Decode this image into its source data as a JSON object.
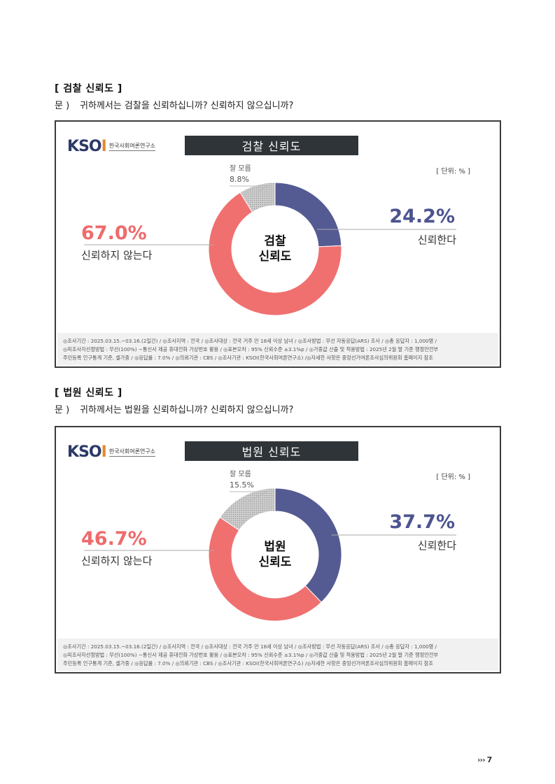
{
  "sections": [
    {
      "heading": "[ 검찰 신뢰도 ]",
      "question_label": "문 )",
      "question": "귀하께서는 검찰을 신뢰하십니까? 신뢰하지 않으십니까?",
      "chart_title": "검찰 신뢰도",
      "center_label_line1": "검찰",
      "center_label_line2": "신뢰도"
    },
    {
      "heading": "[ 법원 신뢰도 ]",
      "question_label": "문 )",
      "question": "귀하께서는 법원을 신뢰하십니까? 신뢰하지 않으십니까?",
      "chart_title": "법원 신뢰도",
      "center_label_line1": "법원",
      "center_label_line2": "신뢰도"
    }
  ],
  "logo": {
    "mark_k": "K",
    "mark_soi": "SO",
    "mark_i": "I",
    "subtitle": "한국사회여론연구소"
  },
  "unit_label": "[ 단위: % ]",
  "footer": {
    "line1": "◎조사기간 : 2025.03.15.~03.16.(2일간)  / ◎조사지역 : 전국 / ◎조사대상 : 전국 거주 만 18세 이상 남녀 / ◎조사방법 : 무선 자동응답(ARS) 조사 / ◎총 응답자 : 1,000명 /",
    "line2": "◎피조사자선정방법 : 무선(100%) ~통신사 제공 휴대전화 가상번호 활용 / ◎표본오차 : 95% 신뢰수준 ±3.1%p / ◎가중값 산출 및 적용방법 : 2025년 2월 말 기준 행정안전부",
    "line3": "주민등록 인구통계 기준, 셀가중 / ◎응답률 : 7.0% / ◎의뢰기관 : CBS / ◎조사기관 : KSOI(한국사회여론연구소) /◎자세한 사항은 중앙선거여론조사심의위원회 홈페이지 참조"
  },
  "page": {
    "arrows": "›››",
    "number": "7"
  },
  "chart_data": [
    {
      "type": "pie",
      "title": "검찰 신뢰도",
      "unit": "%",
      "slices": [
        {
          "label": "신뢰한다",
          "value": 24.2,
          "value_label": "24.2%",
          "color": "#545b92"
        },
        {
          "label": "신뢰하지 않는다",
          "value": 67.0,
          "value_label": "67.0%",
          "color": "#f07070"
        },
        {
          "label": "잘 모름",
          "value": 8.8,
          "value_label": "8.8%",
          "color": "#c8c8c8"
        }
      ]
    },
    {
      "type": "pie",
      "title": "법원 신뢰도",
      "unit": "%",
      "slices": [
        {
          "label": "신뢰한다",
          "value": 37.7,
          "value_label": "37.7%",
          "color": "#545b92"
        },
        {
          "label": "신뢰하지 않는다",
          "value": 46.7,
          "value_label": "46.7%",
          "color": "#f07070"
        },
        {
          "label": "잘 모름",
          "value": 15.5,
          "value_label": "15.5%",
          "color": "#c8c8c8"
        }
      ]
    }
  ]
}
